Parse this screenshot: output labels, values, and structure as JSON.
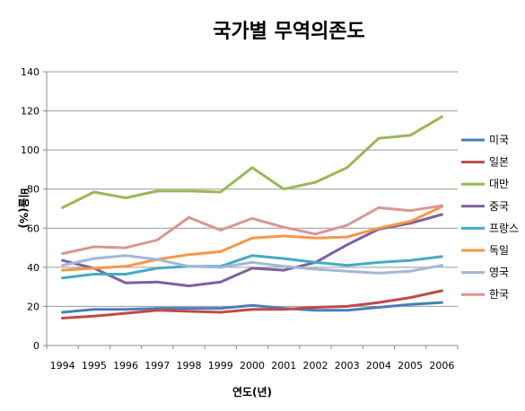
{
  "chart_data": {
    "type": "line",
    "title": "국가별 무역의존도",
    "xlabel": "연도(년)",
    "ylabel": "비율(%)",
    "ylim": [
      0,
      140
    ],
    "yticks": [
      0,
      20,
      40,
      60,
      80,
      100,
      120,
      140
    ],
    "categories": [
      "1994",
      "1995",
      "1996",
      "1997",
      "1998",
      "1999",
      "2000",
      "2001",
      "2002",
      "2003",
      "2004",
      "2005",
      "2006"
    ],
    "legend_position": "right",
    "grid": true,
    "series": [
      {
        "name": "미국",
        "color": "#4A7EBB",
        "values": [
          17,
          18.5,
          18.5,
          19,
          19,
          19,
          20.5,
          19,
          18,
          18,
          19.5,
          21,
          22
        ]
      },
      {
        "name": "일본",
        "color": "#BE4B48",
        "values": [
          14,
          15,
          16.5,
          18,
          17.5,
          17,
          18.5,
          18.5,
          19.5,
          20,
          22,
          24.5,
          28
        ]
      },
      {
        "name": "대만",
        "color": "#98B954",
        "values": [
          70.5,
          78.5,
          75.5,
          79,
          79,
          78.5,
          91,
          80,
          83.5,
          91,
          106,
          107.5,
          117
        ]
      },
      {
        "name": "중국",
        "color": "#7D60A0",
        "values": [
          43.5,
          39.5,
          32,
          32.5,
          30.5,
          32.5,
          39.5,
          38.5,
          42.5,
          51.5,
          59.5,
          62.5,
          67
        ]
      },
      {
        "name": "프랑스",
        "color": "#46AAC5",
        "values": [
          34.5,
          36.5,
          36.5,
          39.5,
          40.5,
          40.5,
          46,
          44.5,
          42.5,
          41,
          42.5,
          43.5,
          45.5
        ]
      },
      {
        "name": "독일",
        "color": "#F79646",
        "values": [
          38.5,
          39.5,
          40.5,
          44,
          46.5,
          48,
          55,
          56,
          55,
          55.5,
          60,
          63.5,
          71
        ]
      },
      {
        "name": "영국",
        "color": "#A5B6D8",
        "values": [
          41,
          44.5,
          46,
          44,
          40.5,
          40,
          42.5,
          40.5,
          39,
          38,
          37,
          38,
          41
        ]
      },
      {
        "name": "한국",
        "color": "#D99694",
        "values": [
          47,
          50.5,
          50,
          54,
          65.5,
          59,
          65,
          60.5,
          57,
          61.5,
          70.5,
          69,
          71.5
        ]
      }
    ]
  }
}
